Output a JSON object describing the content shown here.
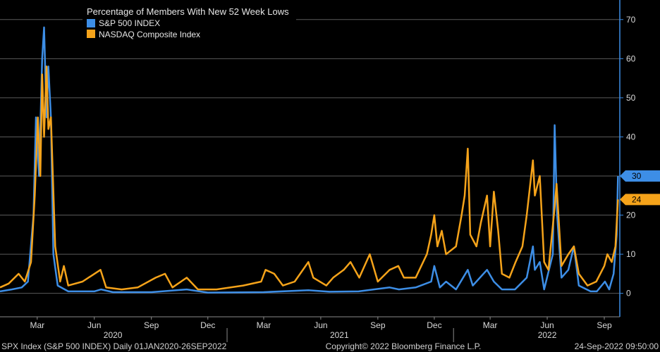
{
  "chart_data": {
    "type": "line",
    "title": "Percentage of Members With New 52 Week Lows",
    "ylim": [
      -6,
      75
    ],
    "y_ticks": [
      0,
      10,
      20,
      30,
      40,
      50,
      60,
      70
    ],
    "y_tick_labels": [
      "0",
      "10",
      "20",
      "30",
      "40",
      "50",
      "60",
      "70"
    ],
    "x_range": [
      "2020-01-01",
      "2022-09-26"
    ],
    "x_month_ticks": [
      {
        "date": "2020-03-01",
        "label": "Mar"
      },
      {
        "date": "2020-06-01",
        "label": "Jun"
      },
      {
        "date": "2020-09-01",
        "label": "Sep"
      },
      {
        "date": "2020-12-01",
        "label": "Dec"
      },
      {
        "date": "2021-03-01",
        "label": "Mar"
      },
      {
        "date": "2021-06-01",
        "label": "Jun"
      },
      {
        "date": "2021-09-01",
        "label": "Sep"
      },
      {
        "date": "2021-12-01",
        "label": "Dec"
      },
      {
        "date": "2022-03-01",
        "label": "Mar"
      },
      {
        "date": "2022-06-01",
        "label": "Jun"
      },
      {
        "date": "2022-09-01",
        "label": "Sep"
      }
    ],
    "x_year_labels": [
      {
        "date": "2020-07-01",
        "label": "2020"
      },
      {
        "date": "2021-07-01",
        "label": "2021"
      },
      {
        "date": "2022-06-01",
        "label": "2022"
      }
    ],
    "grid": true,
    "legend_position": "top-left",
    "series": [
      {
        "name": "S&P 500 INDEX",
        "color": "#3d8ee6",
        "last_value_label": "30",
        "points": [
          [
            "2020-01-01",
            0.5
          ],
          [
            "2020-01-20",
            1
          ],
          [
            "2020-02-05",
            1.5
          ],
          [
            "2020-02-15",
            3
          ],
          [
            "2020-02-24",
            20
          ],
          [
            "2020-02-28",
            45
          ],
          [
            "2020-03-04",
            30
          ],
          [
            "2020-03-09",
            60
          ],
          [
            "2020-03-12",
            68
          ],
          [
            "2020-03-16",
            45
          ],
          [
            "2020-03-19",
            58
          ],
          [
            "2020-03-23",
            45
          ],
          [
            "2020-03-27",
            10
          ],
          [
            "2020-04-03",
            2
          ],
          [
            "2020-04-20",
            0.5
          ],
          [
            "2020-06-01",
            0.5
          ],
          [
            "2020-06-12",
            1
          ],
          [
            "2020-07-01",
            0.3
          ],
          [
            "2020-09-01",
            0.3
          ],
          [
            "2020-10-28",
            1
          ],
          [
            "2020-12-01",
            0.2
          ],
          [
            "2021-03-01",
            0.3
          ],
          [
            "2021-05-12",
            0.8
          ],
          [
            "2021-06-15",
            0.4
          ],
          [
            "2021-08-01",
            0.5
          ],
          [
            "2021-09-20",
            1.5
          ],
          [
            "2021-10-05",
            1
          ],
          [
            "2021-11-01",
            1.5
          ],
          [
            "2021-11-26",
            3
          ],
          [
            "2021-12-01",
            7
          ],
          [
            "2021-12-10",
            1.5
          ],
          [
            "2021-12-20",
            3
          ],
          [
            "2022-01-05",
            1
          ],
          [
            "2022-01-24",
            6
          ],
          [
            "2022-02-01",
            2
          ],
          [
            "2022-02-24",
            6
          ],
          [
            "2022-03-07",
            3
          ],
          [
            "2022-03-20",
            1
          ],
          [
            "2022-04-10",
            1
          ],
          [
            "2022-04-29",
            4
          ],
          [
            "2022-05-09",
            12
          ],
          [
            "2022-05-12",
            6
          ],
          [
            "2022-05-20",
            8
          ],
          [
            "2022-05-27",
            1
          ],
          [
            "2022-06-10",
            10
          ],
          [
            "2022-06-13",
            43
          ],
          [
            "2022-06-17",
            20
          ],
          [
            "2022-06-24",
            4
          ],
          [
            "2022-07-05",
            6
          ],
          [
            "2022-07-14",
            12
          ],
          [
            "2022-07-22",
            2
          ],
          [
            "2022-08-10",
            0.5
          ],
          [
            "2022-08-20",
            0.5
          ],
          [
            "2022-09-02",
            3
          ],
          [
            "2022-09-09",
            1
          ],
          [
            "2022-09-16",
            5
          ],
          [
            "2022-09-21",
            15
          ],
          [
            "2022-09-23",
            30
          ]
        ]
      },
      {
        "name": "NASDAQ Composite Index",
        "color": "#f5a31a",
        "last_value_label": "24",
        "points": [
          [
            "2020-01-01",
            1.5
          ],
          [
            "2020-01-15",
            2.5
          ],
          [
            "2020-01-31",
            5
          ],
          [
            "2020-02-10",
            3
          ],
          [
            "2020-02-20",
            8
          ],
          [
            "2020-02-26",
            25
          ],
          [
            "2020-03-02",
            45
          ],
          [
            "2020-03-06",
            30
          ],
          [
            "2020-03-09",
            56
          ],
          [
            "2020-03-12",
            40
          ],
          [
            "2020-03-16",
            58
          ],
          [
            "2020-03-19",
            42
          ],
          [
            "2020-03-23",
            45
          ],
          [
            "2020-03-30",
            12
          ],
          [
            "2020-04-07",
            3
          ],
          [
            "2020-04-13",
            7
          ],
          [
            "2020-04-20",
            2
          ],
          [
            "2020-05-13",
            3
          ],
          [
            "2020-06-11",
            6
          ],
          [
            "2020-06-20",
            1.5
          ],
          [
            "2020-07-15",
            1
          ],
          [
            "2020-08-10",
            1.5
          ],
          [
            "2020-09-08",
            4
          ],
          [
            "2020-09-23",
            5
          ],
          [
            "2020-10-05",
            1.5
          ],
          [
            "2020-10-28",
            4
          ],
          [
            "2020-11-15",
            1
          ],
          [
            "2020-12-15",
            1
          ],
          [
            "2021-01-27",
            2
          ],
          [
            "2021-02-25",
            3
          ],
          [
            "2021-03-04",
            6
          ],
          [
            "2021-03-18",
            5
          ],
          [
            "2021-04-01",
            2
          ],
          [
            "2021-04-20",
            3
          ],
          [
            "2021-05-12",
            8
          ],
          [
            "2021-05-20",
            4
          ],
          [
            "2021-06-10",
            2
          ],
          [
            "2021-06-21",
            4
          ],
          [
            "2021-07-08",
            6
          ],
          [
            "2021-07-19",
            8
          ],
          [
            "2021-08-02",
            4
          ],
          [
            "2021-08-19",
            10
          ],
          [
            "2021-09-01",
            3
          ],
          [
            "2021-09-20",
            6
          ],
          [
            "2021-10-04",
            7
          ],
          [
            "2021-10-13",
            4
          ],
          [
            "2021-11-01",
            4
          ],
          [
            "2021-11-19",
            10
          ],
          [
            "2021-11-26",
            15
          ],
          [
            "2021-12-01",
            20
          ],
          [
            "2021-12-06",
            12
          ],
          [
            "2021-12-13",
            16
          ],
          [
            "2021-12-20",
            10
          ],
          [
            "2022-01-05",
            12
          ],
          [
            "2022-01-14",
            20
          ],
          [
            "2022-01-19",
            25
          ],
          [
            "2022-01-24",
            37
          ],
          [
            "2022-01-28",
            15
          ],
          [
            "2022-02-07",
            12
          ],
          [
            "2022-02-14",
            18
          ],
          [
            "2022-02-24",
            25
          ],
          [
            "2022-03-01",
            12
          ],
          [
            "2022-03-07",
            26
          ],
          [
            "2022-03-14",
            16
          ],
          [
            "2022-03-20",
            5
          ],
          [
            "2022-04-01",
            4
          ],
          [
            "2022-04-11",
            8
          ],
          [
            "2022-04-22",
            12
          ],
          [
            "2022-04-29",
            20
          ],
          [
            "2022-05-09",
            34
          ],
          [
            "2022-05-12",
            25
          ],
          [
            "2022-05-20",
            30
          ],
          [
            "2022-05-27",
            8
          ],
          [
            "2022-06-03",
            6
          ],
          [
            "2022-06-13",
            22
          ],
          [
            "2022-06-16",
            28
          ],
          [
            "2022-06-24",
            7
          ],
          [
            "2022-07-05",
            10
          ],
          [
            "2022-07-14",
            12
          ],
          [
            "2022-07-22",
            5
          ],
          [
            "2022-08-05",
            2
          ],
          [
            "2022-08-19",
            3
          ],
          [
            "2022-09-01",
            7
          ],
          [
            "2022-09-06",
            10
          ],
          [
            "2022-09-13",
            8
          ],
          [
            "2022-09-19",
            12
          ],
          [
            "2022-09-23",
            24
          ]
        ]
      }
    ]
  },
  "footer": {
    "left": "SPX Index (S&P 500 INDEX)  Daily 01JAN2020-26SEP2022",
    "center": "Copyright© 2022 Bloomberg Finance L.P.",
    "right": "24-Sep-2022 09:50:00"
  }
}
